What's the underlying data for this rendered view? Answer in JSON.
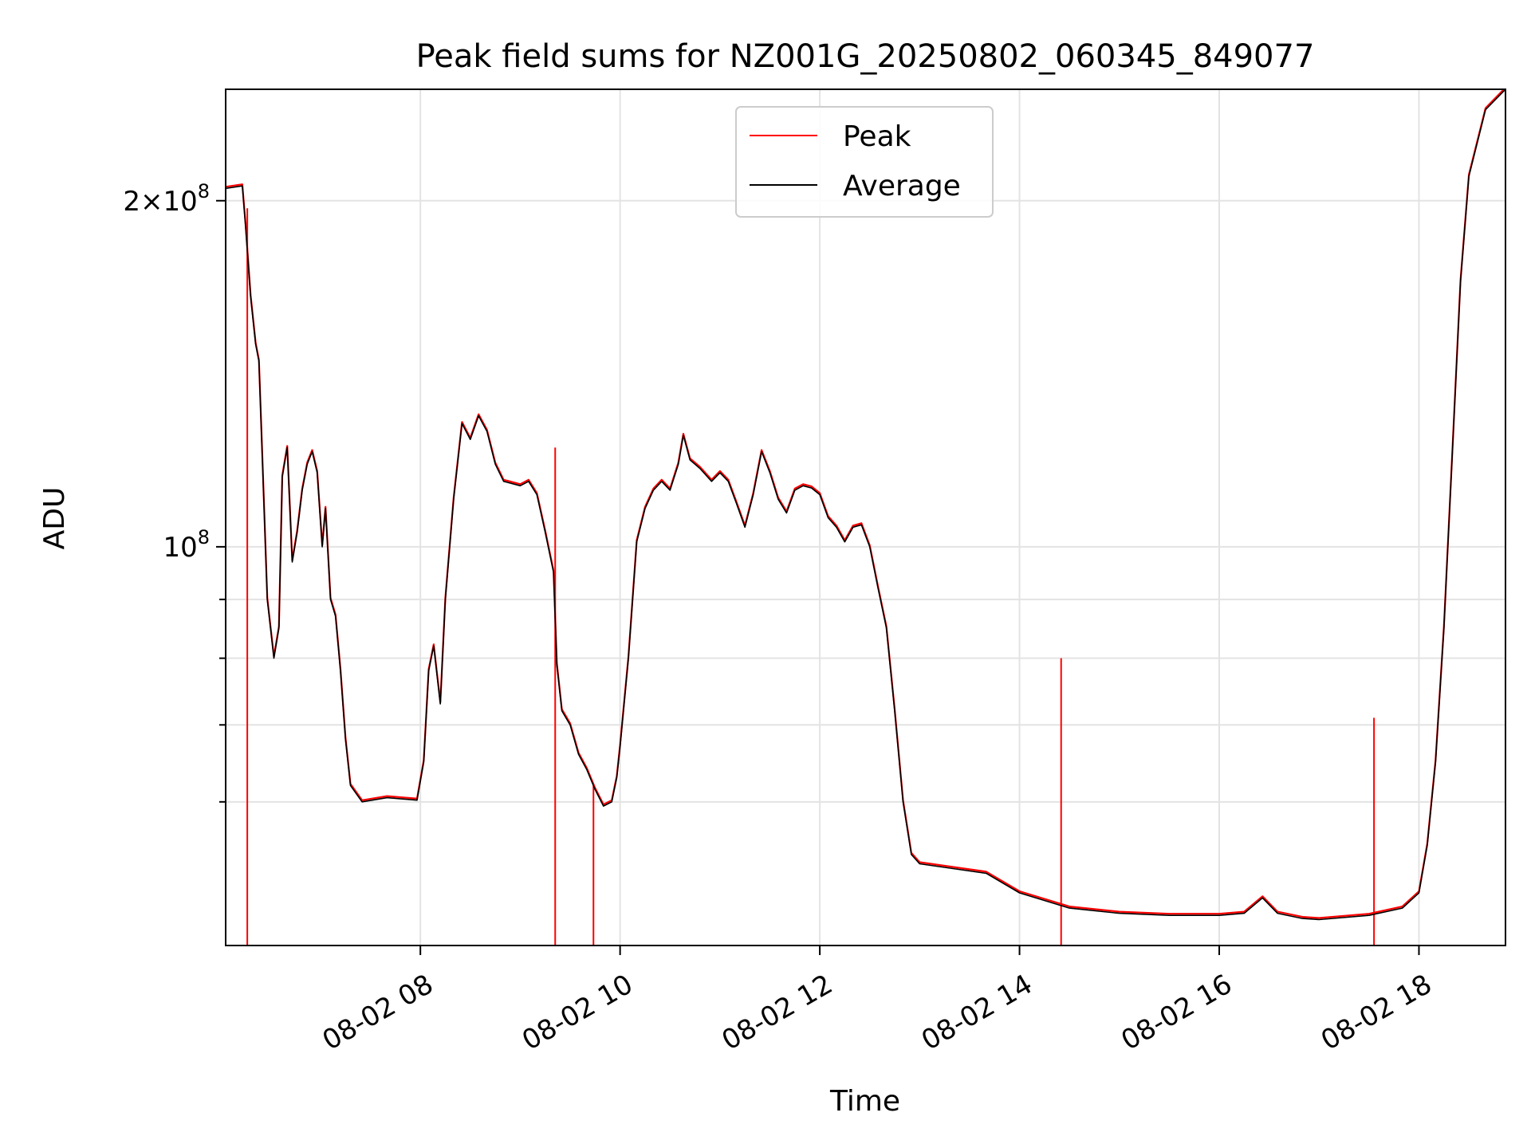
{
  "chart_data": {
    "type": "line",
    "title": "Peak field sums for NZ001G_20250802_060345_849077",
    "xlabel": "Time",
    "ylabel": "ADU",
    "y_scale": "log",
    "ylim": [
      45000000,
      250000000
    ],
    "xlim": [
      "08-02 06:03",
      "08-02 18:52"
    ],
    "grid": true,
    "legend_position": "upper center",
    "x_ticks": [
      {
        "value": "08-02 08:00",
        "label": "08-02 08"
      },
      {
        "value": "08-02 10:00",
        "label": "08-02 10"
      },
      {
        "value": "08-02 12:00",
        "label": "08-02 12"
      },
      {
        "value": "08-02 14:00",
        "label": "08-02 14"
      },
      {
        "value": "08-02 16:00",
        "label": "08-02 16"
      },
      {
        "value": "08-02 18:00",
        "label": "08-02 18"
      }
    ],
    "y_major_ticks": [
      {
        "value": 100000000,
        "label": "10^8"
      },
      {
        "value": 200000000,
        "label": "2×10^8"
      }
    ],
    "y_minor_ticks": [
      60000000,
      70000000,
      80000000,
      90000000
    ],
    "series": [
      {
        "name": "Average",
        "color": "#000000",
        "points": [
          [
            "08-02 06:03",
            205000000
          ],
          [
            "08-02 06:13",
            206000000
          ],
          [
            "08-02 06:15",
            190000000
          ],
          [
            "08-02 06:18",
            165000000
          ],
          [
            "08-02 06:21",
            150000000
          ],
          [
            "08-02 06:23",
            145000000
          ],
          [
            "08-02 06:25",
            120000000
          ],
          [
            "08-02 06:28",
            90000000
          ],
          [
            "08-02 06:32",
            80000000
          ],
          [
            "08-02 06:35",
            85000000
          ],
          [
            "08-02 06:37",
            115000000
          ],
          [
            "08-02 06:40",
            122000000
          ],
          [
            "08-02 06:43",
            97000000
          ],
          [
            "08-02 06:46",
            103000000
          ],
          [
            "08-02 06:49",
            112000000
          ],
          [
            "08-02 06:52",
            118000000
          ],
          [
            "08-02 06:55",
            121000000
          ],
          [
            "08-02 06:58",
            116000000
          ],
          [
            "08-02 07:01",
            100000000
          ],
          [
            "08-02 07:03",
            108000000
          ],
          [
            "08-02 07:06",
            90000000
          ],
          [
            "08-02 07:09",
            87000000
          ],
          [
            "08-02 07:12",
            78000000
          ],
          [
            "08-02 07:15",
            68000000
          ],
          [
            "08-02 07:18",
            62000000
          ],
          [
            "08-02 07:25",
            60000000
          ],
          [
            "08-02 07:40",
            60500000
          ],
          [
            "08-02 07:58",
            60200000
          ],
          [
            "08-02 08:02",
            65000000
          ],
          [
            "08-02 08:05",
            78000000
          ],
          [
            "08-02 08:08",
            82000000
          ],
          [
            "08-02 08:12",
            73000000
          ],
          [
            "08-02 08:15",
            90000000
          ],
          [
            "08-02 08:20",
            110000000
          ],
          [
            "08-02 08:25",
            128000000
          ],
          [
            "08-02 08:30",
            124000000
          ],
          [
            "08-02 08:35",
            130000000
          ],
          [
            "08-02 08:40",
            126000000
          ],
          [
            "08-02 08:45",
            118000000
          ],
          [
            "08-02 08:50",
            114000000
          ],
          [
            "08-02 09:00",
            113000000
          ],
          [
            "08-02 09:05",
            114000000
          ],
          [
            "08-02 09:10",
            111000000
          ],
          [
            "08-02 09:15",
            103000000
          ],
          [
            "08-02 09:20",
            95000000
          ],
          [
            "08-02 09:22",
            79000000
          ],
          [
            "08-02 09:25",
            72000000
          ],
          [
            "08-02 09:30",
            70000000
          ],
          [
            "08-02 09:35",
            66000000
          ],
          [
            "08-02 09:40",
            64000000
          ],
          [
            "08-02 09:45",
            61500000
          ],
          [
            "08-02 09:50",
            59500000
          ],
          [
            "08-02 09:55",
            60000000
          ],
          [
            "08-02 09:58",
            63000000
          ],
          [
            "08-02 10:00",
            67000000
          ],
          [
            "08-02 10:05",
            80000000
          ],
          [
            "08-02 10:10",
            101000000
          ],
          [
            "08-02 10:15",
            108000000
          ],
          [
            "08-02 10:20",
            112000000
          ],
          [
            "08-02 10:25",
            114000000
          ],
          [
            "08-02 10:30",
            112000000
          ],
          [
            "08-02 10:35",
            118000000
          ],
          [
            "08-02 10:38",
            125000000
          ],
          [
            "08-02 10:42",
            119000000
          ],
          [
            "08-02 10:48",
            117000000
          ],
          [
            "08-02 10:55",
            114000000
          ],
          [
            "08-02 11:00",
            116000000
          ],
          [
            "08-02 11:05",
            114000000
          ],
          [
            "08-02 11:10",
            109000000
          ],
          [
            "08-02 11:15",
            104000000
          ],
          [
            "08-02 11:20",
            111000000
          ],
          [
            "08-02 11:25",
            121000000
          ],
          [
            "08-02 11:30",
            116000000
          ],
          [
            "08-02 11:35",
            110000000
          ],
          [
            "08-02 11:40",
            107000000
          ],
          [
            "08-02 11:45",
            112000000
          ],
          [
            "08-02 11:50",
            113000000
          ],
          [
            "08-02 11:55",
            112500000
          ],
          [
            "08-02 12:00",
            111000000
          ],
          [
            "08-02 12:05",
            106000000
          ],
          [
            "08-02 12:10",
            104000000
          ],
          [
            "08-02 12:15",
            101000000
          ],
          [
            "08-02 12:20",
            104000000
          ],
          [
            "08-02 12:25",
            104500000
          ],
          [
            "08-02 12:30",
            100000000
          ],
          [
            "08-02 12:35",
            92000000
          ],
          [
            "08-02 12:40",
            85000000
          ],
          [
            "08-02 12:45",
            72000000
          ],
          [
            "08-02 12:50",
            60000000
          ],
          [
            "08-02 12:55",
            54000000
          ],
          [
            "08-02 13:00",
            53000000
          ],
          [
            "08-02 13:20",
            52500000
          ],
          [
            "08-02 13:40",
            52000000
          ],
          [
            "08-02 14:00",
            50000000
          ],
          [
            "08-02 14:30",
            48500000
          ],
          [
            "08-02 15:00",
            48000000
          ],
          [
            "08-02 15:30",
            47800000
          ],
          [
            "08-02 16:00",
            47800000
          ],
          [
            "08-02 16:15",
            48000000
          ],
          [
            "08-02 16:26",
            49500000
          ],
          [
            "08-02 16:35",
            48000000
          ],
          [
            "08-02 16:50",
            47500000
          ],
          [
            "08-02 17:00",
            47400000
          ],
          [
            "08-02 17:30",
            47800000
          ],
          [
            "08-02 17:50",
            48500000
          ],
          [
            "08-02 18:00",
            50000000
          ],
          [
            "08-02 18:05",
            55000000
          ],
          [
            "08-02 18:10",
            65000000
          ],
          [
            "08-02 18:15",
            85000000
          ],
          [
            "08-02 18:20",
            120000000
          ],
          [
            "08-02 18:25",
            170000000
          ],
          [
            "08-02 18:30",
            210000000
          ],
          [
            "08-02 18:40",
            240000000
          ],
          [
            "08-02 18:52",
            250000000
          ]
        ]
      },
      {
        "name": "Peak",
        "color": "#ff0000",
        "spikes": [
          {
            "x": "08-02 06:16",
            "y": 197000000
          },
          {
            "x": "08-02 09:21",
            "y": 122000000
          },
          {
            "x": "08-02 09:44",
            "y": 62000000
          },
          {
            "x": "08-02 14:25",
            "y": 80000000
          },
          {
            "x": "08-02 17:33",
            "y": 71000000
          }
        ]
      }
    ]
  }
}
